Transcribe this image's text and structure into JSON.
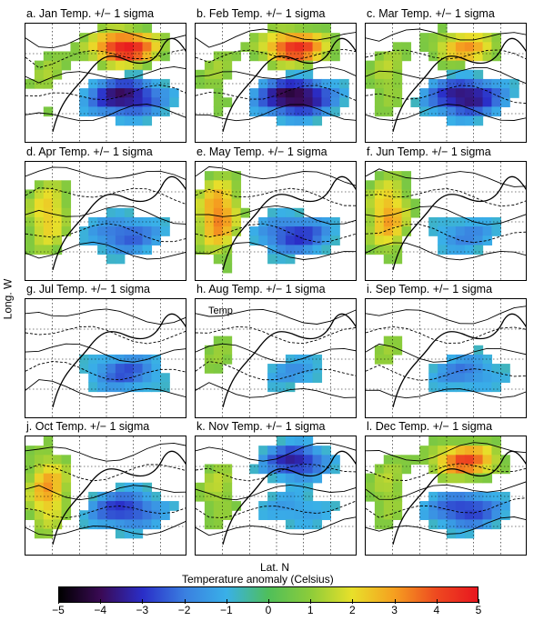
{
  "figure": {
    "y_label": "Long. W",
    "x_label": "Lat. N",
    "colorbar": {
      "title": "Temperature anomaly (Celsius)",
      "range": [
        -5,
        5
      ],
      "ticks": [
        "−5",
        "−4",
        "−3",
        "−2",
        "−1",
        "0",
        "1",
        "2",
        "3",
        "4",
        "5"
      ],
      "colormap": [
        "#000000",
        "#3a0a55",
        "#2a2ec8",
        "#3a7fe0",
        "#39b0e8",
        "#4fbf5a",
        "#8ccc3a",
        "#e8e02a",
        "#f5a020",
        "#ee4a20",
        "#e8161f"
      ]
    }
  },
  "chart_data": [
    {
      "type": "heatmap",
      "title": "a. Jan  Temp.  +/−  1 sigma",
      "pattern": {
        "warm_center": 5,
        "cold_center": -4,
        "west_band": 1.2
      }
    },
    {
      "type": "heatmap",
      "title": "b. Feb  Temp.  +/−  1 sigma",
      "pattern": {
        "warm_center": 4.5,
        "cold_center": -4.5,
        "west_band": 1.2
      }
    },
    {
      "type": "heatmap",
      "title": "c. Mar  Temp.  +/−  1 sigma",
      "pattern": {
        "warm_center": 3,
        "cold_center": -4,
        "west_band": 1.5
      }
    },
    {
      "type": "heatmap",
      "title": "d. Apr  Temp.  +/−  1 sigma",
      "pattern": {
        "warm_center": 0,
        "cold_center": -2.5,
        "west_band": 2.5
      }
    },
    {
      "type": "heatmap",
      "title": "e. May  Temp.  +/−  1 sigma",
      "pattern": {
        "warm_center": 0,
        "cold_center": -3,
        "west_band": 3.5
      }
    },
    {
      "type": "heatmap",
      "title": "f. Jun  Temp.  +/−  1 sigma",
      "pattern": {
        "warm_center": 0,
        "cold_center": -1.8,
        "west_band": 3
      }
    },
    {
      "type": "heatmap",
      "title": "g. Jul  Temp.  +/−  1 sigma",
      "pattern": {
        "warm_center": 0,
        "cold_center": -2.5,
        "west_band": 0.5
      },
      "annotation": ""
    },
    {
      "type": "heatmap",
      "title": "h. Aug  Temp.  +/−  1 sigma",
      "pattern": {
        "warm_center": 0,
        "cold_center": -1.5,
        "west_band": 1
      },
      "annotation": "Temp"
    },
    {
      "type": "heatmap",
      "title": "i. Sep  Temp.  +/−  1 sigma",
      "pattern": {
        "warm_center": 0,
        "cold_center": -2,
        "west_band": 1
      }
    },
    {
      "type": "heatmap",
      "title": "j. Oct  Temp.  +/−  1 sigma",
      "pattern": {
        "warm_center": 0,
        "cold_center": -3,
        "west_band": 3
      }
    },
    {
      "type": "heatmap",
      "title": "k. Nov  Temp.  +/−  1 sigma",
      "pattern": {
        "warm_center": -3.5,
        "cold_center": -1.5,
        "west_band": 1.5
      }
    },
    {
      "type": "heatmap",
      "title": "l. Dec  Temp.  +/−  1 sigma",
      "pattern": {
        "warm_center": 4,
        "cold_center": -3,
        "west_band": 1.5
      }
    }
  ]
}
